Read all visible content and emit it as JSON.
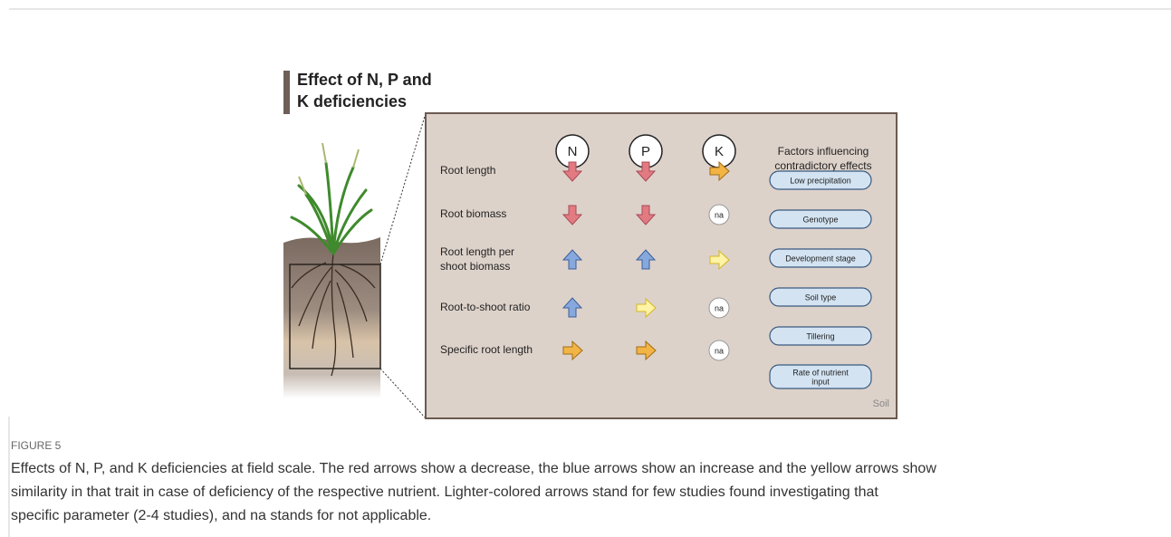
{
  "figure": {
    "title_lines": [
      "Effect of N, P and",
      "K deficiencies"
    ],
    "columns": [
      "N",
      "P",
      "K"
    ],
    "factors_header_lines": [
      "Factors influencing",
      "contradictory effects"
    ],
    "rows": [
      {
        "label_lines": [
          "Root length"
        ]
      },
      {
        "label_lines": [
          "Root biomass"
        ],
        "K": "na"
      },
      {
        "label_lines": [
          "Root length per",
          "shoot biomass"
        ]
      },
      {
        "label_lines": [
          "Root-to-shoot ratio"
        ],
        "K": "na"
      },
      {
        "label_lines": [
          "Specific root length"
        ],
        "K": "na"
      }
    ],
    "factors": [
      [
        "Low precipitation"
      ],
      [
        "Genotype"
      ],
      [
        "Development stage"
      ],
      [
        "Soil type"
      ],
      [
        "Tillering"
      ],
      [
        "Rate of nutrient",
        "input"
      ]
    ],
    "soil_label": "Soil",
    "caption_label": "FIGURE 5",
    "caption_lines": [
      "Effects of N, P, and K deficiencies at field scale. The red arrows show a decrease, the blue arrows show an increase and the yellow arrows show",
      "similarity in that trait in case of deficiency of the respective nutrient. Lighter-colored arrows stand for few studies found investigating that",
      "specific parameter (2-4 studies), and na stands for not applicable."
    ]
  }
}
